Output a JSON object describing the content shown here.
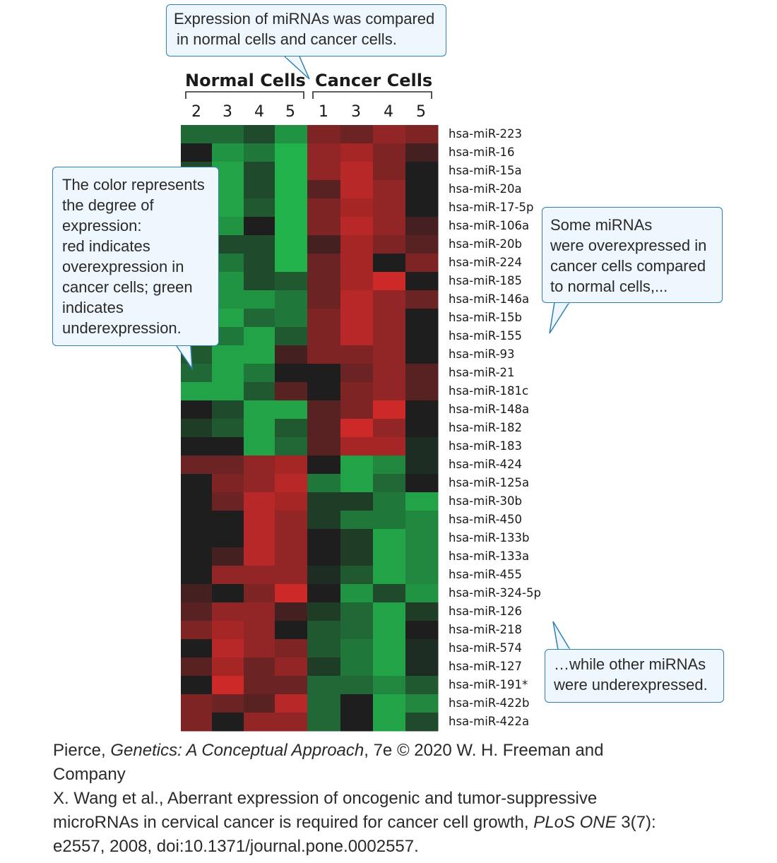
{
  "callouts": {
    "top": [
      "Expression of miRNAs was compared",
      "in normal cells and cancer cells."
    ],
    "left": [
      "The color represents",
      "the degree of",
      "expression:",
      "red indicates",
      "overexpression in",
      "cancer cells; green",
      "indicates",
      "underexpression."
    ],
    "right": [
      "Some miRNAs",
      "were overexpressed in",
      "cancer cells compared",
      "to normal cells,..."
    ],
    "bottom": [
      "…while other miRNAs",
      "were underexpressed."
    ]
  },
  "credit": {
    "line1_a": "Pierce, ",
    "line1_title": "Genetics: A Conceptual Approach",
    "line1_b": ", 7e © 2020 W. H. Freeman and",
    "line2": "Company",
    "line3": "X. Wang et al., Aberrant expression of oncogenic and tumor-suppressive",
    "line4_a": "microRNAs in cervical cancer is required for cancer cell growth, ",
    "line4_journal": "PLoS ONE",
    "line4_b": " 3(7):",
    "line5": "e2557, 2008, doi:10.1371/journal.pone.0002557."
  },
  "colors": {
    "green": "#22b24c",
    "red": "#e02a2a",
    "black": "#1e1e1e",
    "callout_border": "#2f7fb5",
    "callout_fill": "#eef7fd"
  },
  "chart_data": {
    "type": "heatmap",
    "groups": [
      {
        "name": "Normal Cells",
        "columns": [
          "2",
          "3",
          "4",
          "5"
        ]
      },
      {
        "name": "Cancer Cells",
        "columns": [
          "1",
          "3",
          "4",
          "5"
        ]
      }
    ],
    "x": [
      "2",
      "3",
      "4",
      "5",
      "1",
      "3",
      "4",
      "5"
    ],
    "y": [
      "hsa-miR-223",
      "hsa-miR-16",
      "hsa-miR-15a",
      "hsa-miR-20a",
      "hsa-miR-17-5p",
      "hsa-miR-106a",
      "hsa-miR-20b",
      "hsa-miR-224",
      "hsa-miR-185",
      "hsa-miR-146a",
      "hsa-miR-15b",
      "hsa-miR-155",
      "hsa-miR-93",
      "hsa-miR-21",
      "hsa-miR-181c",
      "hsa-miR-148a",
      "hsa-miR-182",
      "hsa-miR-183",
      "hsa-miR-424",
      "hsa-miR-125a",
      "hsa-miR-30b",
      "hsa-miR-450",
      "hsa-miR-133b",
      "hsa-miR-133a",
      "hsa-miR-455",
      "hsa-miR-324-5p",
      "hsa-miR-126",
      "hsa-miR-218",
      "hsa-miR-574",
      "hsa-miR-127",
      "hsa-miR-191*",
      "hsa-miR-422b",
      "hsa-miR-422a"
    ],
    "values": [
      [
        -0.5,
        -0.5,
        -0.3,
        -0.8,
        0.5,
        0.4,
        0.6,
        0.5
      ],
      [
        0.0,
        -0.8,
        -0.6,
        -1.0,
        0.6,
        0.7,
        0.5,
        0.2
      ],
      [
        -0.3,
        -0.9,
        -0.3,
        -1.0,
        0.6,
        0.8,
        0.5,
        0.0
      ],
      [
        -0.3,
        -0.9,
        -0.3,
        -1.0,
        0.3,
        0.8,
        0.6,
        0.0
      ],
      [
        -0.3,
        -0.9,
        -0.4,
        -1.0,
        0.5,
        0.7,
        0.6,
        0.0
      ],
      [
        -0.3,
        -0.8,
        0.0,
        -1.0,
        0.5,
        0.8,
        0.6,
        0.2
      ],
      [
        -0.3,
        -0.3,
        -0.3,
        -1.0,
        0.2,
        0.7,
        0.5,
        0.3
      ],
      [
        -0.3,
        -0.6,
        -0.3,
        -1.0,
        0.4,
        0.7,
        0.0,
        0.5
      ],
      [
        -0.3,
        -0.8,
        -0.3,
        -0.4,
        0.4,
        0.7,
        0.9,
        0.0
      ],
      [
        -0.3,
        -0.8,
        -0.8,
        -0.6,
        0.4,
        0.8,
        0.6,
        0.4
      ],
      [
        -0.3,
        -0.9,
        -0.5,
        -0.6,
        0.5,
        0.8,
        0.6,
        0.0
      ],
      [
        -0.3,
        -0.6,
        -0.9,
        -0.4,
        0.5,
        0.8,
        0.6,
        0.0
      ],
      [
        -0.4,
        -0.9,
        -0.9,
        0.2,
        0.5,
        0.5,
        0.6,
        0.0
      ],
      [
        -0.5,
        -0.9,
        -0.6,
        0.0,
        0.0,
        0.4,
        0.6,
        0.3
      ],
      [
        -0.9,
        -0.9,
        -0.4,
        0.3,
        0.0,
        0.5,
        0.6,
        0.3
      ],
      [
        0.0,
        -0.3,
        -0.9,
        -0.9,
        0.3,
        0.5,
        0.9,
        0.0
      ],
      [
        -0.2,
        -0.4,
        -0.9,
        -0.4,
        0.3,
        0.9,
        0.6,
        0.0
      ],
      [
        0.0,
        0.0,
        -0.9,
        -0.5,
        0.3,
        0.7,
        0.7,
        -0.1
      ],
      [
        0.4,
        0.4,
        0.6,
        0.7,
        0.0,
        -0.9,
        -0.7,
        -0.1
      ],
      [
        0.0,
        0.5,
        0.6,
        0.8,
        -0.6,
        -0.9,
        -0.5,
        0.0
      ],
      [
        0.0,
        0.4,
        0.8,
        0.7,
        -0.2,
        -0.2,
        -0.6,
        -0.9
      ],
      [
        0.0,
        0.0,
        0.8,
        0.6,
        -0.2,
        -0.6,
        -0.6,
        -0.7
      ],
      [
        0.0,
        0.0,
        0.8,
        0.6,
        0.0,
        -0.2,
        -0.9,
        -0.7
      ],
      [
        0.0,
        0.2,
        0.8,
        0.6,
        0.0,
        -0.2,
        -0.9,
        -0.7
      ],
      [
        0.0,
        0.6,
        0.6,
        0.6,
        -0.1,
        -0.4,
        -0.9,
        -0.7
      ],
      [
        0.2,
        0.0,
        0.5,
        0.9,
        0.0,
        -0.8,
        -0.3,
        -0.8
      ],
      [
        0.3,
        0.6,
        0.6,
        0.2,
        -0.2,
        -0.5,
        -0.9,
        -0.2
      ],
      [
        0.5,
        0.7,
        0.6,
        0.0,
        -0.4,
        -0.5,
        -0.9,
        0.0
      ],
      [
        0.0,
        0.8,
        0.6,
        0.5,
        -0.4,
        -0.6,
        -0.9,
        -0.1
      ],
      [
        0.3,
        0.7,
        0.4,
        0.6,
        -0.2,
        -0.6,
        -0.9,
        -0.1
      ],
      [
        0.0,
        0.9,
        0.4,
        0.4,
        -0.5,
        -0.5,
        -0.7,
        -0.4
      ],
      [
        0.5,
        0.4,
        0.3,
        0.8,
        -0.5,
        0.0,
        -0.9,
        -0.7
      ],
      [
        0.5,
        0.0,
        0.6,
        0.6,
        -0.5,
        0.0,
        -0.9,
        -0.3
      ]
    ]
  }
}
